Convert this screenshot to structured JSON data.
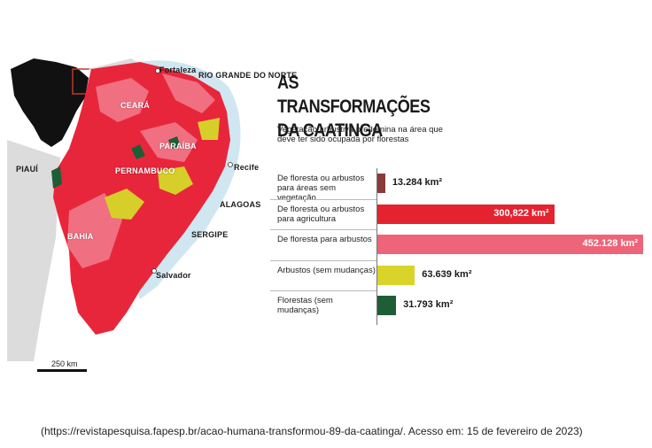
{
  "title": "AS TRANSFORMAÇÕES DA CAATINGA",
  "subtitle": "Vegetação arbustiva predomina na área que deve ter sido ocupada por florestas",
  "map": {
    "labels": {
      "fortaleza": "Fortaleza",
      "rio_grande_do_norte": "RIO GRANDE DO NORTE",
      "ceara": "CEARÁ",
      "paraiba": "PARAÍBA",
      "piaui": "PIAUÍ",
      "pernambuco": "PERNAMBUCO",
      "recife": "Recife",
      "alagoas": "ALAGOAS",
      "sergipe": "SERGIPE",
      "bahia": "BAHIA",
      "salvador": "Salvador"
    },
    "scale_label": "250 km"
  },
  "chart_data": {
    "type": "bar",
    "orientation": "horizontal",
    "title": "AS TRANSFORMAÇÕES DA CAATINGA",
    "subtitle": "Vegetação arbustiva predomina na área que deve ter sido ocupada por florestas",
    "unit": "km²",
    "categories": [
      "De floresta ou arbustos para áreas sem vegetação",
      "De floresta ou arbustos para agricultura",
      "De floresta para arbustos",
      "Arbustos (sem mudanças)",
      "Florestas (sem mudanças)"
    ],
    "values": [
      13284,
      300822,
      452128,
      63639,
      31793
    ],
    "value_labels": [
      "13.284",
      "300,822",
      "452.128",
      "63.639",
      "31.793"
    ],
    "unit_labels": [
      "km²",
      "km²",
      "km²",
      "km²",
      "km²"
    ],
    "colors": [
      "#8a3b3b",
      "#e5222f",
      "#ee6478",
      "#d8d42a",
      "#1f5d35"
    ],
    "xlim": [
      0,
      452128
    ],
    "grid": false,
    "legend": "none"
  },
  "source": "(https://revistapesquisa.fapesp.br/acao-humana-transformou-89-da-caatinga/. Acesso em: 15 de fevereiro de 2023)"
}
